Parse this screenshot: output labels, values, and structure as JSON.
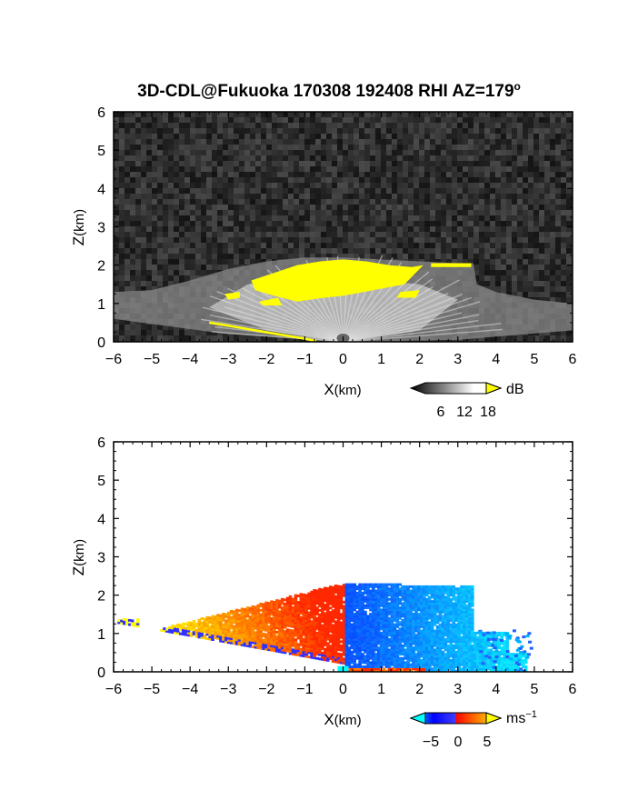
{
  "chart_data": [
    {
      "type": "heatmap",
      "title": "3D-CDL@Fukuoka 170308 192408 RHI AZ=179",
      "title_superscript": "o",
      "xlabel_main": "X",
      "xlabel_unit": "(km)",
      "ylabel_main": "Z",
      "ylabel_unit": "(km)",
      "xlim": [
        -6,
        6
      ],
      "ylim": [
        0,
        6
      ],
      "x_ticks": [
        -6,
        -5,
        -4,
        -3,
        -2,
        -1,
        0,
        1,
        2,
        3,
        4,
        5,
        6
      ],
      "y_ticks": [
        0,
        1,
        2,
        3,
        4,
        5,
        6
      ],
      "grid": false,
      "background": "noise",
      "colorbar": {
        "unit": "dB",
        "tick_labels": [
          "6",
          "12",
          "18"
        ],
        "range": [
          0,
          20
        ],
        "colors": [
          "#000000",
          "#ffffff",
          "#ffff00"
        ]
      },
      "highlight_color": "#ffff00",
      "echo_top_km": 2.2,
      "max_range_km": 3.4
    },
    {
      "type": "heatmap",
      "xlabel_main": "X",
      "xlabel_unit": "(km)",
      "ylabel_main": "Z",
      "ylabel_unit": "(km)",
      "xlim": [
        -6,
        6
      ],
      "ylim": [
        0,
        6
      ],
      "x_ticks": [
        -6,
        -5,
        -4,
        -3,
        -2,
        -1,
        0,
        1,
        2,
        3,
        4,
        5,
        6
      ],
      "y_ticks": [
        0,
        1,
        2,
        3,
        4,
        5,
        6
      ],
      "grid": false,
      "background": "#ffffff",
      "colorbar": {
        "unit": "ms",
        "unit_superscript": "−1",
        "tick_labels": [
          "−5",
          "0",
          "5"
        ],
        "range": [
          -7,
          7
        ],
        "colors": [
          "#00ffff",
          "#0000ff",
          "#ff0000",
          "#ffff00"
        ]
      },
      "field_description_left": "positive (red-yellow) for X<0",
      "field_description_right": "negative (blue) for X>0"
    }
  ]
}
